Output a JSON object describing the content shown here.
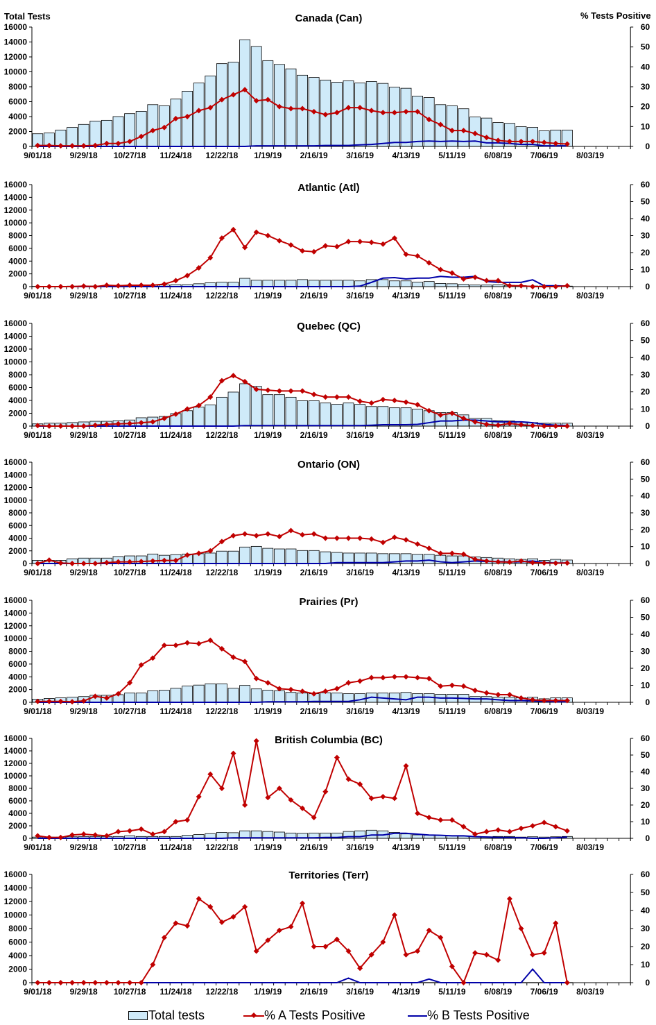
{
  "header": {
    "left_axis_label": "Total Tests",
    "right_axis_label": "% Tests Positive"
  },
  "legend": {
    "total": "Total tests",
    "a": "% A Tests Positive",
    "b": "% B Tests Positive"
  },
  "colors": {
    "bar_fill": "#cfeaf9",
    "bar_stroke": "#000000",
    "a_line": "#c00000",
    "b_line": "#0000a8"
  },
  "chart_data": [
    {
      "type": "bar+line",
      "title": "Canada (Can)",
      "total": [
        1700,
        1800,
        2200,
        2550,
        2950,
        3400,
        3500,
        4000,
        4400,
        4700,
        5600,
        5450,
        6350,
        7400,
        8500,
        9450,
        11100,
        11300,
        14300,
        13400,
        11500,
        11000,
        10400,
        9550,
        9250,
        8900,
        8600,
        8800,
        8500,
        8700,
        8450,
        7950,
        7800,
        6750,
        6550,
        5600,
        5450,
        5050,
        3950,
        3800,
        3200,
        3100,
        2650,
        2550,
        2100,
        2200,
        2200
      ],
      "pct_a": [
        0.5,
        0.5,
        0.3,
        0.3,
        0.3,
        0.5,
        1.5,
        1.5,
        2.5,
        5,
        8,
        9.5,
        14,
        15,
        18,
        19.5,
        23.5,
        26,
        28.5,
        23,
        23.5,
        20,
        19,
        19,
        17.5,
        16,
        17,
        19.5,
        19.5,
        18,
        17,
        17,
        17.5,
        17.5,
        13.5,
        11,
        8,
        8,
        6.5,
        4.5,
        3,
        2.5,
        2.5,
        2.5,
        2,
        1.5,
        1.2
      ],
      "pct_b": [
        0,
        0,
        0,
        0,
        0,
        0,
        0,
        0,
        0,
        0,
        0,
        0,
        0,
        0,
        0,
        0,
        0,
        0,
        0,
        0.3,
        0.3,
        0.3,
        0.3,
        0.3,
        0.3,
        0.5,
        0.5,
        0.5,
        0.8,
        1,
        1.5,
        2,
        2,
        2.5,
        2.7,
        2.5,
        2.7,
        2.5,
        2.7,
        1.8,
        1.8,
        1.5,
        1,
        1,
        0.3,
        0.3,
        0.3
      ]
    },
    {
      "type": "bar+line",
      "title": "Atlantic (Atl)",
      "total": [
        50,
        50,
        50,
        80,
        100,
        100,
        150,
        150,
        200,
        200,
        200,
        250,
        300,
        300,
        450,
        600,
        700,
        700,
        1300,
        1000,
        1000,
        1000,
        1000,
        1100,
        1000,
        1000,
        1000,
        1000,
        900,
        1100,
        1100,
        900,
        900,
        700,
        800,
        500,
        450,
        350,
        250,
        250,
        300,
        200,
        150,
        100,
        100,
        80,
        80
      ],
      "pct_a": [
        0,
        0,
        0,
        0,
        0.3,
        0,
        0.8,
        0.5,
        0.8,
        0.8,
        0.8,
        1.5,
        3.5,
        6.5,
        11,
        17,
        28.5,
        33.5,
        23,
        32,
        30,
        27,
        24.5,
        21,
        20.5,
        24,
        23.5,
        26.5,
        26.5,
        26,
        25,
        28.5,
        19,
        18,
        14,
        10,
        8,
        4.5,
        5.5,
        3.5,
        3.5,
        0.5,
        0.5,
        0,
        0,
        0,
        0.5
      ],
      "pct_b": [
        0,
        0,
        0,
        0,
        0,
        0,
        0,
        0,
        0,
        0,
        0,
        0,
        0,
        0,
        0,
        0,
        0,
        0,
        0,
        0,
        0,
        0,
        0,
        0,
        0,
        0,
        0,
        0,
        0.3,
        2.5,
        5,
        5.3,
        4.5,
        5,
        5,
        6,
        5.5,
        5.5,
        6,
        3,
        2.5,
        2.5,
        2.5,
        4,
        0.5,
        0.5,
        0.3
      ]
    },
    {
      "type": "bar+line",
      "title": "Quebec (QC)",
      "total": [
        350,
        450,
        450,
        550,
        650,
        750,
        750,
        850,
        950,
        1300,
        1400,
        1500,
        1950,
        2400,
        2950,
        3300,
        4500,
        5300,
        6600,
        6200,
        4900,
        4900,
        4500,
        3950,
        3950,
        3600,
        3400,
        3600,
        3400,
        3050,
        3050,
        2850,
        2850,
        2650,
        2400,
        2100,
        2100,
        1750,
        1200,
        1200,
        850,
        800,
        650,
        550,
        450,
        450,
        450
      ],
      "pct_a": [
        0.3,
        0,
        0,
        0,
        0,
        0.5,
        1,
        1.3,
        1.5,
        2,
        2.5,
        4.5,
        7,
        10,
        12,
        17,
        26.5,
        29.5,
        26,
        21.5,
        21,
        20.5,
        20.5,
        20.5,
        18.5,
        17,
        17,
        17,
        14.5,
        13.5,
        15.5,
        15,
        14,
        12.5,
        9,
        6.5,
        7.5,
        4.5,
        2.5,
        1,
        0.5,
        1.5,
        0.8,
        0.3,
        0,
        0,
        0
      ],
      "pct_b": [
        0,
        0,
        0,
        0,
        0,
        0,
        0,
        0,
        0,
        0,
        0,
        0,
        0,
        0,
        0,
        0,
        0,
        0,
        0.3,
        0.3,
        0.3,
        0.3,
        0.3,
        0.3,
        0.3,
        0.3,
        0.3,
        0.3,
        0.3,
        0.5,
        0.8,
        0.8,
        0.8,
        1,
        2,
        3,
        3,
        3.5,
        3.5,
        3,
        2.5,
        2.5,
        2.5,
        2,
        1,
        0.5,
        0.3
      ]
    },
    {
      "type": "bar+line",
      "title": "Ontario (ON)",
      "total": [
        500,
        500,
        500,
        750,
        850,
        850,
        850,
        1100,
        1200,
        1200,
        1500,
        1300,
        1400,
        1500,
        1550,
        1650,
        1950,
        1950,
        2600,
        2700,
        2400,
        2300,
        2300,
        2050,
        2050,
        1850,
        1750,
        1650,
        1650,
        1650,
        1550,
        1550,
        1550,
        1450,
        1450,
        1300,
        1200,
        1200,
        1050,
        950,
        850,
        750,
        650,
        750,
        500,
        650,
        550
      ],
      "pct_a": [
        0,
        2,
        0.3,
        0,
        0,
        0,
        0.5,
        1,
        1,
        1.2,
        1.5,
        1.8,
        1.8,
        5,
        6,
        7.5,
        13,
        16.5,
        17.5,
        16.5,
        17.5,
        16,
        19.5,
        17,
        17.5,
        15,
        15,
        15,
        15,
        14.5,
        12.5,
        15.5,
        14,
        11.5,
        9,
        6,
        6,
        5.5,
        2.5,
        1.5,
        1,
        0.8,
        1.5,
        0.5,
        0.3,
        0.2,
        0.3
      ],
      "pct_b": [
        0,
        0,
        0,
        0,
        0,
        0,
        0,
        0,
        0,
        0,
        0,
        0,
        0,
        0,
        0,
        0,
        0,
        0,
        0,
        0,
        0,
        0,
        0,
        0,
        0,
        0,
        0.5,
        0.5,
        0.5,
        0.5,
        0.5,
        1,
        1.5,
        1.5,
        2,
        1,
        0.5,
        1,
        1.5,
        1.2,
        1.2,
        1,
        1,
        1.5,
        0.5,
        0.3,
        0.3
      ]
    },
    {
      "type": "bar+line",
      "title": "Prairies (Pr)",
      "total": [
        500,
        600,
        700,
        800,
        900,
        1100,
        1100,
        1200,
        1450,
        1450,
        1800,
        1900,
        2200,
        2550,
        2700,
        2900,
        2900,
        2200,
        2650,
        2100,
        1900,
        1800,
        1550,
        1450,
        1350,
        1500,
        1450,
        1350,
        1350,
        1450,
        1450,
        1450,
        1550,
        1350,
        1350,
        1250,
        1250,
        1250,
        900,
        900,
        800,
        800,
        700,
        800,
        550,
        700,
        700
      ],
      "pct_a": [
        0.5,
        0.5,
        0.5,
        0.3,
        0.8,
        3.5,
        2.5,
        5,
        11.5,
        22,
        26,
        33.5,
        33.5,
        35,
        34.5,
        36.5,
        31.5,
        26.5,
        24,
        14,
        11.5,
        8,
        7.5,
        6.5,
        5,
        6.5,
        8,
        11.5,
        12.5,
        14.5,
        14.5,
        15,
        15,
        14.5,
        14,
        9.5,
        10,
        9.5,
        7,
        5.5,
        4.5,
        4.5,
        2.5,
        1.5,
        1,
        1,
        1
      ],
      "pct_b": [
        0,
        0,
        0,
        0,
        0,
        0,
        0,
        0,
        0,
        0,
        0,
        0,
        0,
        0,
        0,
        0,
        0,
        0,
        0,
        0,
        0.3,
        0.3,
        0.3,
        0.3,
        0.5,
        0.5,
        0.5,
        0.5,
        1.5,
        3,
        2.5,
        2,
        1.5,
        3,
        3,
        2.5,
        2.5,
        2.3,
        2,
        2,
        1.5,
        1,
        1,
        0.8,
        0.5,
        0.3,
        0.3
      ]
    },
    {
      "type": "bar+line",
      "title": "British Columbia (BC)",
      "total": [
        200,
        200,
        200,
        250,
        300,
        300,
        300,
        300,
        400,
        300,
        300,
        300,
        300,
        500,
        600,
        750,
        950,
        900,
        1200,
        1200,
        1100,
        1000,
        850,
        800,
        850,
        850,
        850,
        1100,
        1200,
        1300,
        1200,
        950,
        700,
        550,
        500,
        500,
        450,
        350,
        300,
        250,
        300,
        300,
        200,
        250,
        200,
        250,
        300
      ],
      "pct_a": [
        1.5,
        0.5,
        0.5,
        2,
        2.5,
        2,
        1.5,
        4,
        4.5,
        5.5,
        2.5,
        4,
        10,
        11,
        25,
        38.5,
        30,
        51,
        20,
        58.5,
        24.5,
        30,
        23,
        18,
        12.5,
        28,
        48.5,
        35.5,
        32.5,
        24,
        25,
        24,
        43.5,
        15,
        12.5,
        11,
        11,
        7,
        2.5,
        4,
        5,
        4,
        6,
        7.5,
        9.5,
        7,
        4.5
      ],
      "pct_b": [
        0,
        0,
        0,
        0,
        0,
        0,
        0,
        0,
        0,
        0,
        0,
        0,
        0,
        0,
        0,
        0,
        0,
        0.3,
        0.3,
        0.3,
        0.3,
        0.3,
        0.3,
        0.3,
        0.3,
        0.5,
        0.5,
        1,
        1,
        2,
        2,
        3,
        3,
        2.5,
        2,
        1.8,
        1.5,
        1.5,
        1,
        0.8,
        0.5,
        0.5,
        0.3,
        0,
        0,
        0.3,
        0.8
      ]
    },
    {
      "type": "bar+line",
      "title": "Territories (Terr)",
      "total": [
        30,
        30,
        30,
        30,
        30,
        30,
        30,
        30,
        30,
        30,
        30,
        30,
        30,
        30,
        30,
        30,
        30,
        30,
        30,
        30,
        30,
        30,
        30,
        30,
        30,
        30,
        30,
        30,
        30,
        30,
        30,
        30,
        30,
        30,
        30,
        30,
        30,
        30,
        30,
        30,
        30,
        30,
        30,
        30,
        30,
        30,
        30
      ],
      "pct_a": [
        0,
        0,
        0,
        0,
        0,
        0,
        0,
        0,
        0,
        0,
        10,
        25,
        33,
        31.5,
        46.5,
        42,
        33.5,
        36.5,
        42,
        17.5,
        23.5,
        29,
        31,
        44,
        20,
        20,
        24,
        17.5,
        8,
        15.5,
        22.5,
        37.5,
        15.5,
        17.5,
        29,
        25,
        9,
        0,
        16.5,
        15.5,
        12.5,
        46.5,
        30,
        15.5,
        16.5,
        33,
        0
      ],
      "pct_b": [
        0,
        0,
        0,
        0,
        0,
        0,
        0,
        0,
        0,
        0,
        0,
        0,
        0,
        0,
        0,
        0,
        0,
        0,
        0,
        0,
        0,
        0,
        0,
        0,
        0,
        0,
        0,
        2.5,
        0,
        0,
        0,
        0,
        0,
        0,
        2,
        0,
        0,
        0,
        0,
        0,
        0,
        0,
        0,
        7.5,
        0,
        0,
        0
      ]
    }
  ],
  "axes": {
    "x_ticks": [
      "9/01/18",
      "9/29/18",
      "10/27/18",
      "11/24/18",
      "12/22/18",
      "1/19/19",
      "2/16/19",
      "3/16/19",
      "4/13/19",
      "5/11/19",
      "6/08/19",
      "7/06/19",
      "8/03/19"
    ],
    "y_left_ticks": [
      "0",
      "2000",
      "4000",
      "6000",
      "8000",
      "10000",
      "12000",
      "14000",
      "16000"
    ],
    "y_left_max": 16000,
    "y_right_ticks": [
      "0",
      "10",
      "20",
      "30",
      "40",
      "50",
      "60"
    ],
    "y_right_max": 60
  }
}
